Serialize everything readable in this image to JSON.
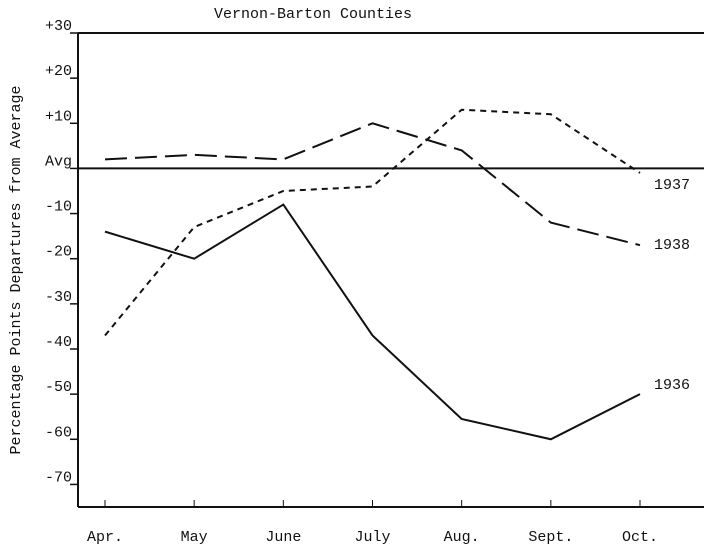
{
  "chart_data": {
    "type": "line",
    "title": "Vernon-Barton Counties",
    "y_label": "Percentage Points Departures from Average",
    "categories": [
      "Apr.",
      "May",
      "June",
      "July",
      "Aug.",
      "Sept.",
      "Oct."
    ],
    "series": [
      {
        "name": "1936",
        "color": "#111111",
        "values": [
          -14,
          -20,
          -8,
          -37,
          -55.5,
          -60,
          -50
        ]
      },
      {
        "name": "1937",
        "color": "#111111",
        "values": [
          -37,
          -13,
          -5,
          -4,
          13,
          12,
          -1
        ]
      },
      {
        "name": "1938",
        "color": "#111111",
        "values": [
          2,
          3,
          2,
          10,
          4,
          -12,
          -17
        ]
      }
    ],
    "ylim": [
      -75,
      30
    ],
    "yticks": [
      {
        "value": 30,
        "label": "+30"
      },
      {
        "value": 20,
        "label": "+20"
      },
      {
        "value": 10,
        "label": "+10"
      },
      {
        "value": 0,
        "label": "Avg"
      },
      -10,
      -20,
      -30,
      -40,
      -50,
      -60,
      -70
    ],
    "grid": false
  }
}
